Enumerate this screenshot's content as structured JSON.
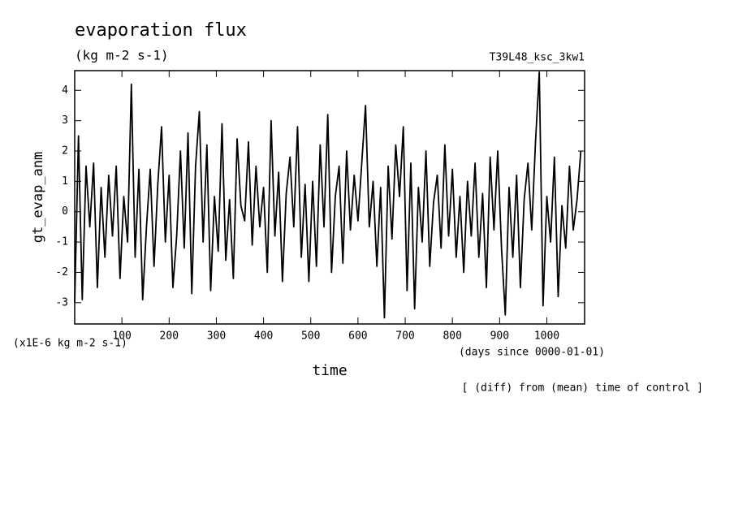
{
  "chart_data": {
    "type": "line",
    "title": "evaporation flux",
    "subtitle": "(kg m-2 s-1)",
    "experiment": "T39L48_ksc_3kw1",
    "y_label": "gt_evap_anm",
    "y_unit": "(x1E-6 kg m-2 s-1)",
    "x_label": "time",
    "x_unit": "(days since 0000-01-01)",
    "footnote": "[ (diff) from (mean) time of control ]",
    "x": [
      0,
      8,
      16,
      24,
      32,
      40,
      48,
      56,
      64,
      72,
      80,
      88,
      96,
      104,
      112,
      120,
      128,
      136,
      144,
      152,
      160,
      168,
      176,
      184,
      192,
      200,
      208,
      216,
      224,
      232,
      240,
      248,
      256,
      264,
      272,
      280,
      288,
      296,
      304,
      312,
      320,
      328,
      336,
      344,
      352,
      360,
      368,
      376,
      384,
      392,
      400,
      408,
      416,
      424,
      432,
      440,
      448,
      456,
      464,
      472,
      480,
      488,
      496,
      504,
      512,
      520,
      528,
      536,
      544,
      552,
      560,
      568,
      576,
      584,
      592,
      600,
      608,
      616,
      624,
      632,
      640,
      648,
      656,
      664,
      672,
      680,
      688,
      696,
      704,
      712,
      720,
      728,
      736,
      744,
      752,
      760,
      768,
      776,
      784,
      792,
      800,
      808,
      816,
      824,
      832,
      840,
      848,
      856,
      864,
      872,
      880,
      888,
      896,
      904,
      912,
      920,
      928,
      936,
      944,
      952,
      960,
      968,
      976,
      984,
      992,
      1000,
      1008,
      1016,
      1024,
      1032,
      1040,
      1048,
      1056,
      1064,
      1072
    ],
    "series": [
      {
        "name": "gt_evap_anm",
        "color": "#000000",
        "values": [
          -3.0,
          2.5,
          -2.9,
          1.5,
          -0.5,
          1.6,
          -2.5,
          0.8,
          -1.5,
          1.2,
          -0.8,
          1.5,
          -2.2,
          0.5,
          -1.0,
          4.2,
          -1.5,
          1.4,
          -2.9,
          -0.5,
          1.4,
          -1.8,
          0.9,
          2.8,
          -1.0,
          1.2,
          -2.5,
          -0.8,
          2.0,
          -1.2,
          2.6,
          -2.7,
          1.5,
          3.3,
          -1.0,
          2.2,
          -2.6,
          0.5,
          -1.3,
          2.9,
          -1.6,
          0.4,
          -2.2,
          2.4,
          0.2,
          -0.3,
          2.3,
          -1.1,
          1.5,
          -0.5,
          0.8,
          -2.0,
          3.0,
          -0.8,
          1.3,
          -2.3,
          0.6,
          1.8,
          -0.5,
          2.8,
          -1.5,
          0.9,
          -2.3,
          1.0,
          -1.8,
          2.2,
          -0.5,
          3.2,
          -2.0,
          0.5,
          1.5,
          -1.7,
          2.0,
          -0.6,
          1.2,
          -0.3,
          1.6,
          3.5,
          -0.5,
          1.0,
          -1.8,
          0.8,
          -3.5,
          1.5,
          -0.9,
          2.2,
          0.5,
          2.8,
          -2.6,
          1.6,
          -3.2,
          0.8,
          -1.0,
          2.0,
          -1.8,
          0.3,
          1.2,
          -1.2,
          2.2,
          -0.8,
          1.4,
          -1.5,
          0.5,
          -2.0,
          1.0,
          -0.8,
          1.6,
          -1.5,
          0.6,
          -2.5,
          1.8,
          -0.6,
          2.0,
          -1.2,
          -3.4,
          0.8,
          -1.5,
          1.2,
          -2.5,
          0.4,
          1.6,
          -0.6,
          2.3,
          4.6,
          -3.1,
          0.5,
          -1.0,
          1.8,
          -2.8,
          0.2,
          -1.2,
          1.5,
          -0.6,
          0.4,
          2.0
        ]
      }
    ],
    "xlim": [
      0,
      1080
    ],
    "xticks": [
      100,
      200,
      300,
      400,
      500,
      600,
      700,
      800,
      900,
      1000
    ],
    "ylim": [
      -3.7,
      4.65
    ],
    "yticks": [
      -3,
      -2,
      -1,
      0,
      1,
      2,
      3,
      4
    ]
  }
}
